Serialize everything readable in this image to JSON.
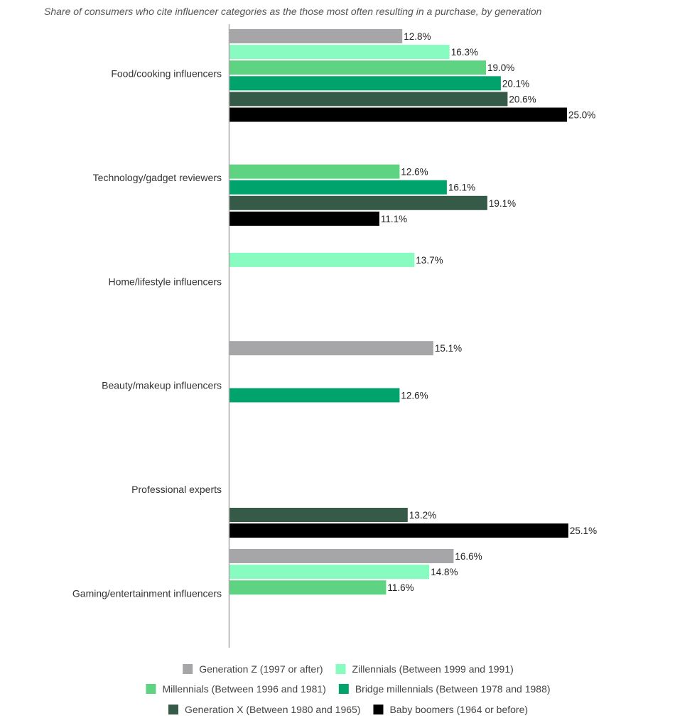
{
  "chart_data": {
    "type": "bar",
    "orientation": "horizontal",
    "title": "Share of consumers who cite influencer categories as the those most often resulting in a purchase, by generation",
    "categories": [
      "Food/cooking influencers",
      "Technology/gadget reviewers",
      "Home/lifestyle influencers",
      "Beauty/makeup influencers",
      "Professional experts",
      "Gaming/entertainment influencers"
    ],
    "series": [
      {
        "name": "Generation Z (1997 or after)",
        "color": "#a6a6a8",
        "values": [
          12.8,
          null,
          null,
          15.1,
          null,
          16.6
        ]
      },
      {
        "name": "Zillennials (Between 1999 and 1991)",
        "color": "#88fcc0",
        "values": [
          16.3,
          null,
          13.7,
          null,
          null,
          14.8
        ]
      },
      {
        "name": "Millennials (Between 1996 and 1981)",
        "color": "#5ed381",
        "values": [
          19.0,
          12.6,
          null,
          null,
          null,
          11.6
        ]
      },
      {
        "name": "Bridge millennials (Between 1978 and 1988)",
        "color": "#00a36c",
        "values": [
          20.1,
          16.1,
          null,
          12.6,
          null,
          null
        ]
      },
      {
        "name": "Generation X (Between 1980 and 1965)",
        "color": "#355a48",
        "values": [
          20.6,
          19.1,
          null,
          null,
          13.2,
          null
        ]
      },
      {
        "name": "Baby boomers (1964 or before)",
        "color": "#000000",
        "values": [
          25.0,
          11.1,
          null,
          null,
          25.1,
          null
        ]
      }
    ],
    "value_suffix": "%",
    "xlim": [
      0,
      28
    ],
    "grid": false,
    "legend_position": "bottom"
  }
}
